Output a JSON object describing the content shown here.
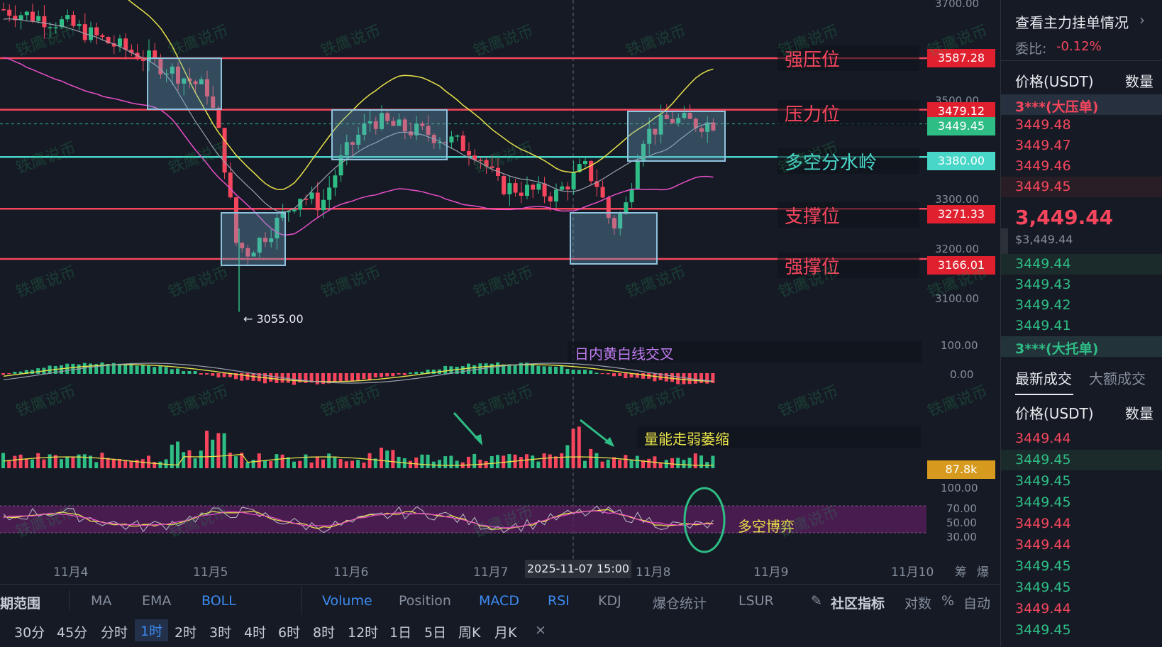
{
  "chart": {
    "y_axis": [
      "3700.00",
      "3500.00",
      "3300.00",
      "3200.00",
      "3100.00"
    ],
    "x_axis": [
      "11月4",
      "11月5",
      "11月6",
      "11月7",
      "11月8",
      "11月9",
      "11月10"
    ],
    "x_extra": [
      "筹",
      "爆"
    ],
    "crosshair_time": "2025-11-07 15:00",
    "min_price_label": "← 3055.00",
    "levels": [
      {
        "name": "强压位",
        "value": "3587.28",
        "color": "#f6465d"
      },
      {
        "name": "压力位",
        "value": "3479.12",
        "color": "#f6465d"
      },
      {
        "name": "多空分水岭",
        "value": "3380.00",
        "color": "#48d6c8"
      },
      {
        "name": "支撑位",
        "value": "3271.33",
        "color": "#f6465d"
      },
      {
        "name": "强撑位",
        "value": "3166.01",
        "color": "#f6465d"
      }
    ],
    "current_price_tag": "3449.45",
    "current_price_color": "#2ebd85",
    "macd_axis": [
      "100.00",
      "0.00"
    ],
    "macd_annotation": "日内黄白线交叉",
    "volume_annotation": "量能走弱萎缩",
    "volume_tag": "87.8k",
    "rsi_axis": [
      "100.00",
      "70.00",
      "50.00",
      "30.00"
    ],
    "rsi_annotation": "多空博弈",
    "watermark": "铁鹰说币",
    "colors": {
      "up": "#2ebd85",
      "down": "#f6465d",
      "boll_upper": "#e8e24a",
      "boll_lower": "#e84fc8",
      "rsi_zone": "#5a1e5e"
    }
  },
  "toolbar": {
    "range_label": "期范围",
    "items": [
      "MA",
      "EMA",
      "BOLL",
      "Volume",
      "Position",
      "MACD",
      "RSI",
      "KDJ",
      "爆仓统计",
      "LSUR"
    ],
    "community": "社区指标",
    "right": [
      "对数",
      "%",
      "自动"
    ],
    "timeframes": [
      "30分",
      "45分",
      "分时",
      "1时",
      "2时",
      "3时",
      "4时",
      "6时",
      "8时",
      "12时",
      "1日",
      "5日",
      "周K",
      "月K"
    ],
    "active_timeframe": "1时",
    "close": "×"
  },
  "panel": {
    "title": "查看主力挂单情况",
    "ratio_label": "委比:",
    "ratio_value": "-0.12%",
    "col_price": "价格(USDT)",
    "col_qty": "数量",
    "ask_big": "3***(大压单)",
    "asks": [
      "3449.48",
      "3449.47",
      "3449.46",
      "3449.45"
    ],
    "last_price": "3,449.44",
    "last_price_usd": "$3,449.44",
    "bids": [
      "3449.44",
      "3449.43",
      "3449.42",
      "3449.41"
    ],
    "bid_big": "3***(大托单)",
    "tab_latest": "最新成交",
    "tab_large": "大额成交",
    "col_price2": "价格(USDT)",
    "col_qty2": "数量",
    "trades": [
      {
        "p": "3449.44",
        "side": "sell"
      },
      {
        "p": "3449.45",
        "side": "buy"
      },
      {
        "p": "3449.45",
        "side": "buy"
      },
      {
        "p": "3449.45",
        "side": "buy"
      },
      {
        "p": "3449.44",
        "side": "sell"
      },
      {
        "p": "3449.44",
        "side": "sell"
      },
      {
        "p": "3449.45",
        "side": "buy"
      },
      {
        "p": "3449.45",
        "side": "buy"
      },
      {
        "p": "3449.44",
        "side": "sell"
      },
      {
        "p": "3449.45",
        "side": "buy"
      }
    ]
  }
}
